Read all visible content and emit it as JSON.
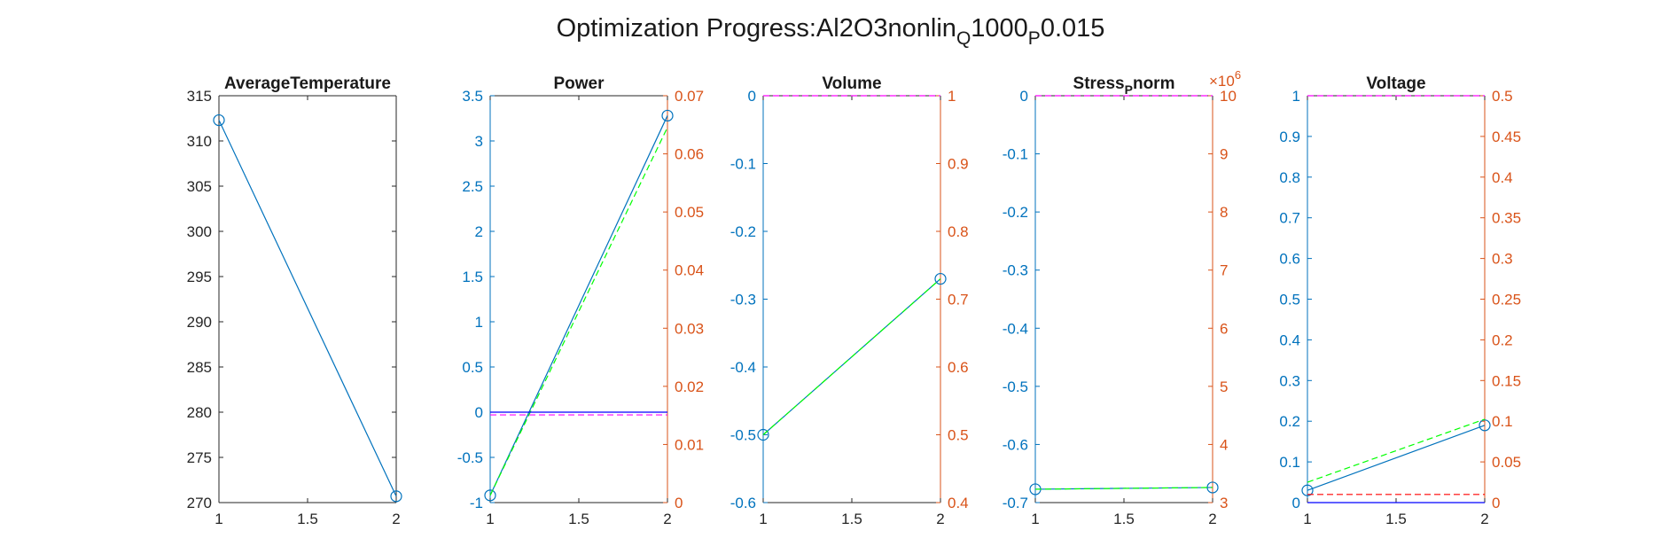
{
  "figure": {
    "title_main": "Optimization Progress:Al2O3nonlin",
    "title_sub1": "Q",
    "title_mid": "1000",
    "title_sub2": "P",
    "title_end": "0.015"
  },
  "colors": {
    "axis_black": "#262626",
    "left_axis_blue": "#0072BD",
    "right_axis_orange": "#D95319",
    "series_blue": "#0072BD",
    "dark_blue": "#0000FF",
    "green_dashed": "#00FF00",
    "red_dashed": "#FF0000",
    "magenta_dashed": "#FF00FF"
  },
  "chart_data": [
    {
      "type": "line",
      "title": "AverageTemperature",
      "title_base": "AverageTemperature",
      "title_sub": "",
      "title_rest": "",
      "x": [
        1,
        2
      ],
      "xlim": [
        1,
        2
      ],
      "xticks": [
        1,
        1.5,
        2
      ],
      "xtick_labels": [
        "1",
        "1.5",
        "2"
      ],
      "left_axis": {
        "ylim": [
          270,
          315
        ],
        "ticks": [
          270,
          275,
          280,
          285,
          290,
          295,
          300,
          305,
          310,
          315
        ],
        "tick_labels": [
          "270",
          "275",
          "280",
          "285",
          "290",
          "295",
          "300",
          "305",
          "310",
          "315"
        ],
        "color": "black"
      },
      "right_axis": null,
      "series": [
        {
          "axis": "left",
          "values": [
            312.3,
            270.7
          ],
          "color": "#0072BD",
          "style": "solid",
          "markers": true
        }
      ]
    },
    {
      "type": "line",
      "title": "Power",
      "title_base": "Power",
      "title_sub": "",
      "title_rest": "",
      "x": [
        1,
        2
      ],
      "xlim": [
        1,
        2
      ],
      "xticks": [
        1,
        1.5,
        2
      ],
      "xtick_labels": [
        "1",
        "1.5",
        "2"
      ],
      "left_axis": {
        "ylim": [
          -1,
          3.5
        ],
        "ticks": [
          -1,
          -0.5,
          0,
          0.5,
          1,
          1.5,
          2,
          2.5,
          3,
          3.5
        ],
        "tick_labels": [
          "-1",
          "-0.5",
          "0",
          "0.5",
          "1",
          "1.5",
          "2",
          "2.5",
          "3",
          "3.5"
        ],
        "color": "blue"
      },
      "right_axis": {
        "ylim": [
          0,
          0.07
        ],
        "ticks": [
          0,
          0.01,
          0.02,
          0.03,
          0.04,
          0.05,
          0.06,
          0.07
        ],
        "tick_labels": [
          "0",
          "0.01",
          "0.02",
          "0.03",
          "0.04",
          "0.05",
          "0.06",
          "0.07"
        ],
        "color": "orange"
      },
      "series": [
        {
          "axis": "left",
          "values": [
            -0.92,
            3.28
          ],
          "color": "#0072BD",
          "style": "solid",
          "markers": true
        },
        {
          "axis": "left",
          "values": [
            -0.92,
            3.15
          ],
          "color": "#00FF00",
          "style": "dashed",
          "markers": false
        },
        {
          "axis": "left",
          "values": [
            0,
            0
          ],
          "color": "#0000FF",
          "style": "solid",
          "markers": false
        },
        {
          "axis": "left",
          "values": [
            -0.03,
            -0.03
          ],
          "color": "#FF00FF",
          "style": "dashed",
          "markers": false
        }
      ]
    },
    {
      "type": "line",
      "title": "Volume",
      "title_base": "Volume",
      "title_sub": "",
      "title_rest": "",
      "x": [
        1,
        2
      ],
      "xlim": [
        1,
        2
      ],
      "xticks": [
        1,
        1.5,
        2
      ],
      "xtick_labels": [
        "1",
        "1.5",
        "2"
      ],
      "left_axis": {
        "ylim": [
          -0.6,
          0
        ],
        "ticks": [
          -0.6,
          -0.5,
          -0.4,
          -0.3,
          -0.2,
          -0.1,
          0
        ],
        "tick_labels": [
          "-0.6",
          "-0.5",
          "-0.4",
          "-0.3",
          "-0.2",
          "-0.1",
          "0"
        ],
        "color": "blue"
      },
      "right_axis": {
        "ylim": [
          0.4,
          1
        ],
        "ticks": [
          0.4,
          0.5,
          0.6,
          0.7,
          0.8,
          0.9,
          1
        ],
        "tick_labels": [
          "0.4",
          "0.5",
          "0.6",
          "0.7",
          "0.8",
          "0.9",
          "1"
        ],
        "color": "orange"
      },
      "series": [
        {
          "axis": "left",
          "values": [
            -0.5,
            -0.27
          ],
          "color": "#0072BD",
          "style": "solid",
          "markers": true
        },
        {
          "axis": "left",
          "values": [
            -0.5,
            -0.27
          ],
          "color": "#00FF00",
          "style": "dashed",
          "markers": false
        },
        {
          "axis": "left",
          "values": [
            0,
            0
          ],
          "color": "#FF00FF",
          "style": "dashed",
          "markers": false
        }
      ]
    },
    {
      "type": "line",
      "title": "Stress_P norm",
      "title_base": "Stress",
      "title_sub": "P",
      "title_rest": "norm",
      "x": [
        1,
        2
      ],
      "xlim": [
        1,
        2
      ],
      "xticks": [
        1,
        1.5,
        2
      ],
      "xtick_labels": [
        "1",
        "1.5",
        "2"
      ],
      "left_axis": {
        "ylim": [
          -0.7,
          0
        ],
        "ticks": [
          -0.7,
          -0.6,
          -0.5,
          -0.4,
          -0.3,
          -0.2,
          -0.1,
          0
        ],
        "tick_labels": [
          "-0.7",
          "-0.6",
          "-0.5",
          "-0.4",
          "-0.3",
          "-0.2",
          "-0.1",
          "0"
        ],
        "color": "blue"
      },
      "right_axis": {
        "ylim": [
          3,
          10
        ],
        "ticks": [
          3,
          4,
          5,
          6,
          7,
          8,
          9,
          10
        ],
        "tick_labels": [
          "3",
          "4",
          "5",
          "6",
          "7",
          "8",
          "9",
          "10"
        ],
        "color": "orange",
        "exponent_base": "×10",
        "exponent_power": "6"
      },
      "series": [
        {
          "axis": "left",
          "values": [
            -0.677,
            -0.674
          ],
          "color": "#0072BD",
          "style": "solid",
          "markers": true
        },
        {
          "axis": "left",
          "values": [
            -0.677,
            -0.674
          ],
          "color": "#00FF00",
          "style": "dashed",
          "markers": false
        },
        {
          "axis": "left",
          "values": [
            0,
            0
          ],
          "color": "#FF00FF",
          "style": "dashed",
          "markers": false
        }
      ]
    },
    {
      "type": "line",
      "title": "Voltage",
      "title_base": "Voltage",
      "title_sub": "",
      "title_rest": "",
      "x": [
        1,
        2
      ],
      "xlim": [
        1,
        2
      ],
      "xticks": [
        1,
        1.5,
        2
      ],
      "xtick_labels": [
        "1",
        "1.5",
        "2"
      ],
      "left_axis": {
        "ylim": [
          0,
          1
        ],
        "ticks": [
          0,
          0.1,
          0.2,
          0.3,
          0.4,
          0.5,
          0.6,
          0.7,
          0.8,
          0.9,
          1
        ],
        "tick_labels": [
          "0",
          "0.1",
          "0.2",
          "0.3",
          "0.4",
          "0.5",
          "0.6",
          "0.7",
          "0.8",
          "0.9",
          "1"
        ],
        "color": "blue"
      },
      "right_axis": {
        "ylim": [
          0,
          0.5
        ],
        "ticks": [
          0,
          0.05,
          0.1,
          0.15,
          0.2,
          0.25,
          0.3,
          0.35,
          0.4,
          0.45,
          0.5
        ],
        "tick_labels": [
          "0",
          "0.05",
          "0.1",
          "0.15",
          "0.2",
          "0.25",
          "0.3",
          "0.35",
          "0.4",
          "0.45",
          "0.5"
        ],
        "color": "orange"
      },
      "series": [
        {
          "axis": "left",
          "values": [
            0.03,
            0.19
          ],
          "color": "#0072BD",
          "style": "solid",
          "markers": true
        },
        {
          "axis": "left",
          "values": [
            0.05,
            0.205
          ],
          "color": "#00FF00",
          "style": "dashed",
          "markers": false
        },
        {
          "axis": "left",
          "values": [
            0.02,
            0.02
          ],
          "color": "#FF0000",
          "style": "dashed",
          "markers": false
        },
        {
          "axis": "left",
          "values": [
            1,
            1
          ],
          "color": "#FF00FF",
          "style": "dashed",
          "markers": false
        },
        {
          "axis": "left",
          "values": [
            0,
            0
          ],
          "color": "#0000FF",
          "style": "solid",
          "markers": false
        }
      ]
    }
  ]
}
